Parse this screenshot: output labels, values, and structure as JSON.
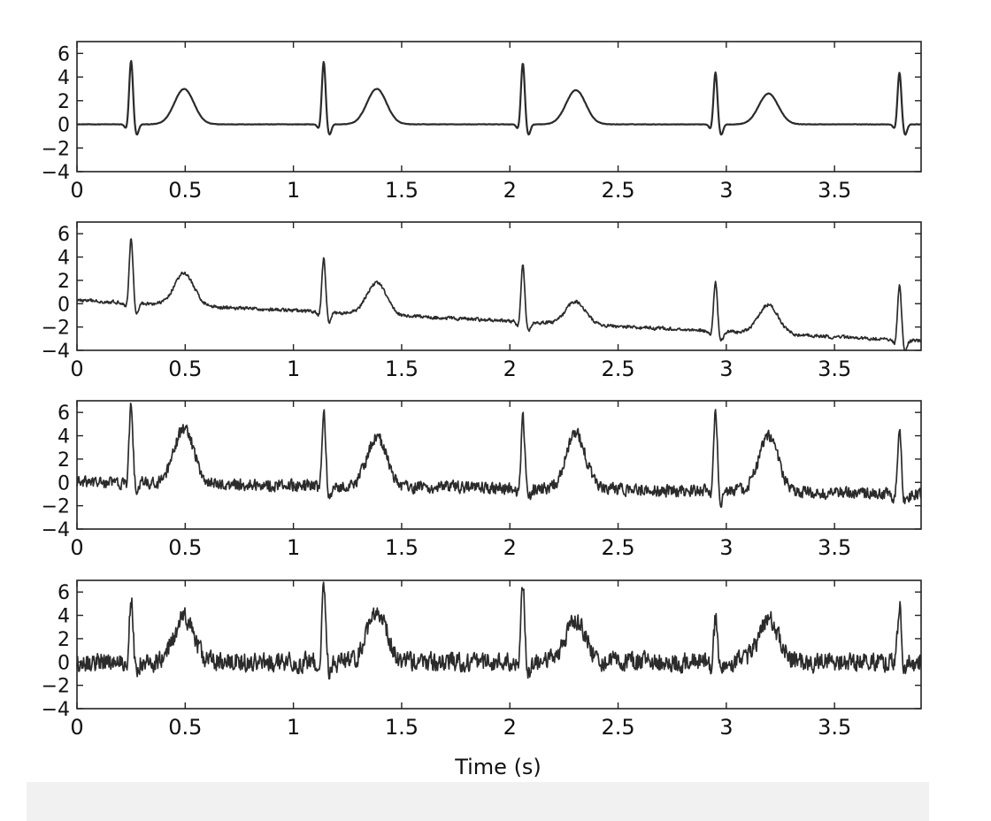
{
  "colors": {
    "background": "#ffffff",
    "plot_background": "#ffffff",
    "axis": "#222222",
    "trace": "#2b2b2b",
    "bottom_band": "#f1f1f1"
  },
  "chart_data": [
    {
      "type": "line",
      "panel": 1,
      "xlabel": "",
      "ylabel": "",
      "xlim": [
        0,
        3.9
      ],
      "ylim": [
        -4,
        7
      ],
      "x_ticks": [
        0,
        0.5,
        1,
        1.5,
        2,
        2.5,
        3,
        3.5
      ],
      "x_tick_labels": [
        "0",
        "0.5",
        "1",
        "1.5",
        "2",
        "2.5",
        "3",
        "3.5"
      ],
      "y_ticks": [
        -4,
        -2,
        0,
        2,
        4,
        6
      ],
      "y_tick_labels": [
        "−4",
        "−2",
        "0",
        "2",
        "4",
        "6"
      ],
      "beat_times": [
        0.25,
        1.14,
        2.06,
        2.95,
        3.8
      ],
      "r_peak_values": [
        5.4,
        5.3,
        5.2,
        4.4,
        4.4
      ],
      "t_wave_values": [
        3.0,
        3.0,
        2.9,
        2.6
      ],
      "baseline_start": 0.0,
      "baseline_end": 0.0,
      "noise_amplitude": 0.02,
      "series": [
        {
          "x": [
            0,
            0.1,
            0.2,
            0.24,
            0.25,
            0.26,
            0.28,
            0.35,
            0.45,
            0.5,
            0.6,
            0.8,
            1.0,
            1.1,
            1.13,
            1.14,
            1.15,
            1.17,
            1.25,
            1.35,
            1.39,
            1.5,
            1.7,
            1.9,
            2.03,
            2.05,
            2.06,
            2.07,
            2.09,
            2.2,
            2.3,
            2.4,
            2.6,
            2.8,
            2.92,
            2.94,
            2.95,
            2.96,
            2.98,
            3.1,
            3.2,
            3.3,
            3.5,
            3.7,
            3.78,
            3.79,
            3.8,
            3.81,
            3.83,
            3.9
          ],
          "y": [
            0.0,
            0.1,
            0.3,
            3.0,
            5.4,
            2.0,
            -0.6,
            0.5,
            2.4,
            3.0,
            0.5,
            0.1,
            0.1,
            0.2,
            3.0,
            5.3,
            2.0,
            -0.5,
            0.8,
            2.6,
            3.0,
            0.4,
            0.1,
            0.1,
            3.0,
            5.2,
            2.0,
            -0.4,
            0.8,
            2.2,
            2.9,
            0.4,
            0.0,
            0.0,
            2.5,
            4.4,
            2.0,
            -0.8,
            0.3,
            2.0,
            2.6,
            0.3,
            -0.3,
            -0.2,
            2.0,
            4.4,
            1.5,
            -0.7,
            -0.4,
            0.0
          ]
        }
      ]
    },
    {
      "type": "line",
      "panel": 2,
      "xlabel": "",
      "ylabel": "",
      "xlim": [
        0,
        3.9
      ],
      "ylim": [
        -4,
        7
      ],
      "x_ticks": [
        0,
        0.5,
        1,
        1.5,
        2,
        2.5,
        3,
        3.5
      ],
      "x_tick_labels": [
        "0",
        "0.5",
        "1",
        "1.5",
        "2",
        "2.5",
        "3",
        "3.5"
      ],
      "y_ticks": [
        -4,
        -2,
        0,
        2,
        4,
        6
      ],
      "y_tick_labels": [
        "−4",
        "−2",
        "0",
        "2",
        "4",
        "6"
      ],
      "beat_times": [
        0.25,
        1.14,
        2.06,
        2.95,
        3.8
      ],
      "r_peak_values": [
        5.6,
        3.9,
        3.3,
        1.9,
        1.6
      ],
      "t_wave_values": [
        2.6,
        1.8,
        0.2,
        -0.1
      ],
      "baseline_start": 0.3,
      "baseline_end": -3.2,
      "noise_amplitude": 0.15,
      "series": [
        {
          "x": [
            0,
            0.2,
            0.25,
            0.3,
            0.45,
            0.5,
            0.6,
            0.8,
            1.0,
            1.1,
            1.14,
            1.17,
            1.3,
            1.39,
            1.45,
            1.65,
            1.9,
            2.02,
            2.06,
            2.09,
            2.2,
            2.3,
            2.35,
            2.5,
            2.75,
            2.92,
            2.95,
            2.98,
            3.1,
            3.2,
            3.3,
            3.5,
            3.75,
            3.8,
            3.83,
            3.9
          ],
          "y": [
            0.2,
            0.6,
            5.6,
            0.6,
            1.9,
            2.6,
            0.0,
            -0.6,
            -0.5,
            -1.3,
            3.9,
            -1.5,
            0.5,
            1.8,
            -0.6,
            -0.5,
            -2.0,
            -2.5,
            3.3,
            -2.0,
            -1.4,
            0.2,
            -1.8,
            -2.3,
            -2.6,
            -2.8,
            1.9,
            -3.4,
            -2.0,
            -0.1,
            -2.2,
            -2.4,
            -3.2,
            1.6,
            -3.6,
            -3.1
          ]
        }
      ]
    },
    {
      "type": "line",
      "panel": 3,
      "xlabel": "",
      "ylabel": "",
      "xlim": [
        0,
        3.9
      ],
      "ylim": [
        -4,
        7
      ],
      "x_ticks": [
        0,
        0.5,
        1,
        1.5,
        2,
        2.5,
        3,
        3.5
      ],
      "x_tick_labels": [
        "0",
        "0.5",
        "1",
        "1.5",
        "2",
        "2.5",
        "3",
        "3.5"
      ],
      "y_ticks": [
        -4,
        -2,
        0,
        2,
        4,
        6
      ],
      "y_tick_labels": [
        "−4",
        "−2",
        "0",
        "2",
        "4",
        "6"
      ],
      "beat_times": [
        0.25,
        1.14,
        2.06,
        2.95,
        3.8
      ],
      "r_peak_values": [
        6.8,
        6.0,
        5.5,
        6.4,
        4.5
      ],
      "t_wave_values": [
        4.6,
        3.9,
        4.2,
        3.9
      ],
      "baseline_start": 0.0,
      "baseline_end": -1.0,
      "noise_amplitude": 0.55,
      "series": [
        {
          "x": [
            0,
            0.2,
            0.25,
            0.28,
            0.4,
            0.5,
            0.6,
            0.75,
            0.9,
            1.1,
            1.14,
            1.17,
            1.3,
            1.39,
            1.5,
            1.7,
            1.9,
            2.03,
            2.06,
            2.09,
            2.2,
            2.3,
            2.45,
            2.6,
            2.8,
            2.93,
            2.95,
            2.98,
            3.1,
            3.2,
            3.3,
            3.5,
            3.7,
            3.8,
            3.83,
            3.9
          ],
          "y": [
            0.5,
            1.0,
            6.8,
            -0.5,
            2.0,
            4.6,
            1.5,
            -1.5,
            -0.2,
            0.5,
            6.0,
            0.0,
            2.5,
            3.9,
            0.5,
            0.8,
            0.3,
            0.5,
            5.5,
            -1.5,
            2.0,
            4.2,
            0.5,
            -1.5,
            0.8,
            0.8,
            6.4,
            -1.2,
            1.0,
            3.9,
            1.0,
            -0.5,
            -2.0,
            4.5,
            -2.8,
            0.0
          ]
        }
      ]
    },
    {
      "type": "line",
      "panel": 4,
      "xlabel": "Time (s)",
      "ylabel": "",
      "xlim": [
        0,
        3.9
      ],
      "ylim": [
        -4,
        7
      ],
      "x_ticks": [
        0,
        0.5,
        1,
        1.5,
        2,
        2.5,
        3,
        3.5
      ],
      "x_tick_labels": [
        "0",
        "0.5",
        "1",
        "1.5",
        "2",
        "2.5",
        "3",
        "3.5"
      ],
      "y_ticks": [
        -4,
        -2,
        0,
        2,
        4,
        6
      ],
      "y_tick_labels": [
        "−4",
        "−2",
        "0",
        "2",
        "4",
        "6"
      ],
      "beat_times": [
        0.25,
        1.14,
        2.06,
        2.95,
        3.8
      ],
      "r_peak_values": [
        5.5,
        6.8,
        6.7,
        3.7,
        5.1
      ],
      "t_wave_values": [
        3.8,
        4.5,
        3.6,
        3.6
      ],
      "baseline_start": 0.0,
      "baseline_end": 0.0,
      "noise_amplitude": 0.85,
      "series": [
        {
          "x": [
            0,
            0.2,
            0.25,
            0.28,
            0.4,
            0.5,
            0.6,
            0.8,
            1.0,
            1.1,
            1.14,
            1.17,
            1.3,
            1.39,
            1.5,
            1.7,
            1.9,
            2.03,
            2.06,
            2.09,
            2.2,
            2.3,
            2.45,
            2.6,
            2.8,
            2.93,
            2.95,
            2.98,
            3.1,
            3.2,
            3.3,
            3.5,
            3.7,
            3.8,
            3.83,
            3.9
          ],
          "y": [
            0.0,
            -0.5,
            5.5,
            -1.0,
            1.5,
            3.8,
            0.5,
            -0.3,
            0.0,
            0.0,
            6.8,
            -1.0,
            1.5,
            4.5,
            0.0,
            0.0,
            0.0,
            0.0,
            6.7,
            -1.5,
            1.0,
            3.6,
            0.0,
            -0.5,
            0.0,
            0.0,
            3.7,
            -1.5,
            1.0,
            3.6,
            0.0,
            -0.5,
            -0.5,
            5.1,
            -2.0,
            -2.0
          ]
        }
      ]
    }
  ]
}
